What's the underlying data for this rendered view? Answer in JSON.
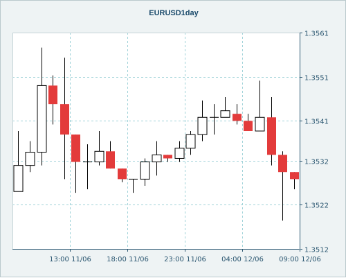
{
  "chart_data": {
    "type": "candlestick",
    "title": "EURUSD1day",
    "xlabel": "",
    "ylabel": "",
    "ylim": [
      1.3512,
      1.3561
    ],
    "y_ticks": [
      "1.3561",
      "1.3551",
      "1.3541",
      "1.3532",
      "1.3522",
      "1.3512"
    ],
    "x_ticks": [
      {
        "label": "13:00 11/06",
        "index": 4.5
      },
      {
        "label": "18:00 11/06",
        "index": 9.5
      },
      {
        "label": "23:00 11/06",
        "index": 14.5
      },
      {
        "label": "04:00 12/06",
        "index": 19.5
      },
      {
        "label": "09:00 12/06",
        "index": 24.5
      }
    ],
    "grid": true,
    "up_color": "#ffffff",
    "down_color": "#e33b3b",
    "candles": [
      {
        "open": 1.3525,
        "high": 1.35387,
        "low": 1.3525,
        "close": 1.35309
      },
      {
        "open": 1.35309,
        "high": 1.35364,
        "low": 1.35294,
        "close": 1.35339
      },
      {
        "open": 1.35339,
        "high": 1.35576,
        "low": 1.35309,
        "close": 1.3549
      },
      {
        "open": 1.3549,
        "high": 1.35513,
        "low": 1.35402,
        "close": 1.35448
      },
      {
        "open": 1.35448,
        "high": 1.35553,
        "low": 1.35278,
        "close": 1.35379
      },
      {
        "open": 1.35379,
        "high": 1.35379,
        "low": 1.35247,
        "close": 1.35317
      },
      {
        "open": 1.35317,
        "high": 1.35357,
        "low": 1.35255,
        "close": 1.35317
      },
      {
        "open": 1.35317,
        "high": 1.35387,
        "low": 1.35309,
        "close": 1.35341
      },
      {
        "open": 1.35341,
        "high": 1.35364,
        "low": 1.35302,
        "close": 1.35302
      },
      {
        "open": 1.35302,
        "high": 1.35302,
        "low": 1.35271,
        "close": 1.35278
      },
      {
        "open": 1.35278,
        "high": 1.35278,
        "low": 1.35247,
        "close": 1.35278
      },
      {
        "open": 1.35278,
        "high": 1.35325,
        "low": 1.35263,
        "close": 1.35317
      },
      {
        "open": 1.35317,
        "high": 1.35364,
        "low": 1.35286,
        "close": 1.35333
      },
      {
        "open": 1.35333,
        "high": 1.35333,
        "low": 1.35317,
        "close": 1.35325
      },
      {
        "open": 1.35325,
        "high": 1.35364,
        "low": 1.35317,
        "close": 1.35348
      },
      {
        "open": 1.35348,
        "high": 1.35387,
        "low": 1.35333,
        "close": 1.35379
      },
      {
        "open": 1.35379,
        "high": 1.35456,
        "low": 1.35364,
        "close": 1.35418
      },
      {
        "open": 1.35418,
        "high": 1.35448,
        "low": 1.35379,
        "close": 1.35418
      },
      {
        "open": 1.35418,
        "high": 1.35464,
        "low": 1.35418,
        "close": 1.35433
      },
      {
        "open": 1.35426,
        "high": 1.35448,
        "low": 1.35402,
        "close": 1.3541
      },
      {
        "open": 1.3541,
        "high": 1.35426,
        "low": 1.35387,
        "close": 1.35387
      },
      {
        "open": 1.35387,
        "high": 1.35501,
        "low": 1.35387,
        "close": 1.35418
      },
      {
        "open": 1.35418,
        "high": 1.35464,
        "low": 1.35309,
        "close": 1.35333
      },
      {
        "open": 1.35333,
        "high": 1.35341,
        "low": 1.35184,
        "close": 1.35294
      },
      {
        "open": 1.35294,
        "high": 1.35294,
        "low": 1.35255,
        "close": 1.35278
      }
    ]
  }
}
